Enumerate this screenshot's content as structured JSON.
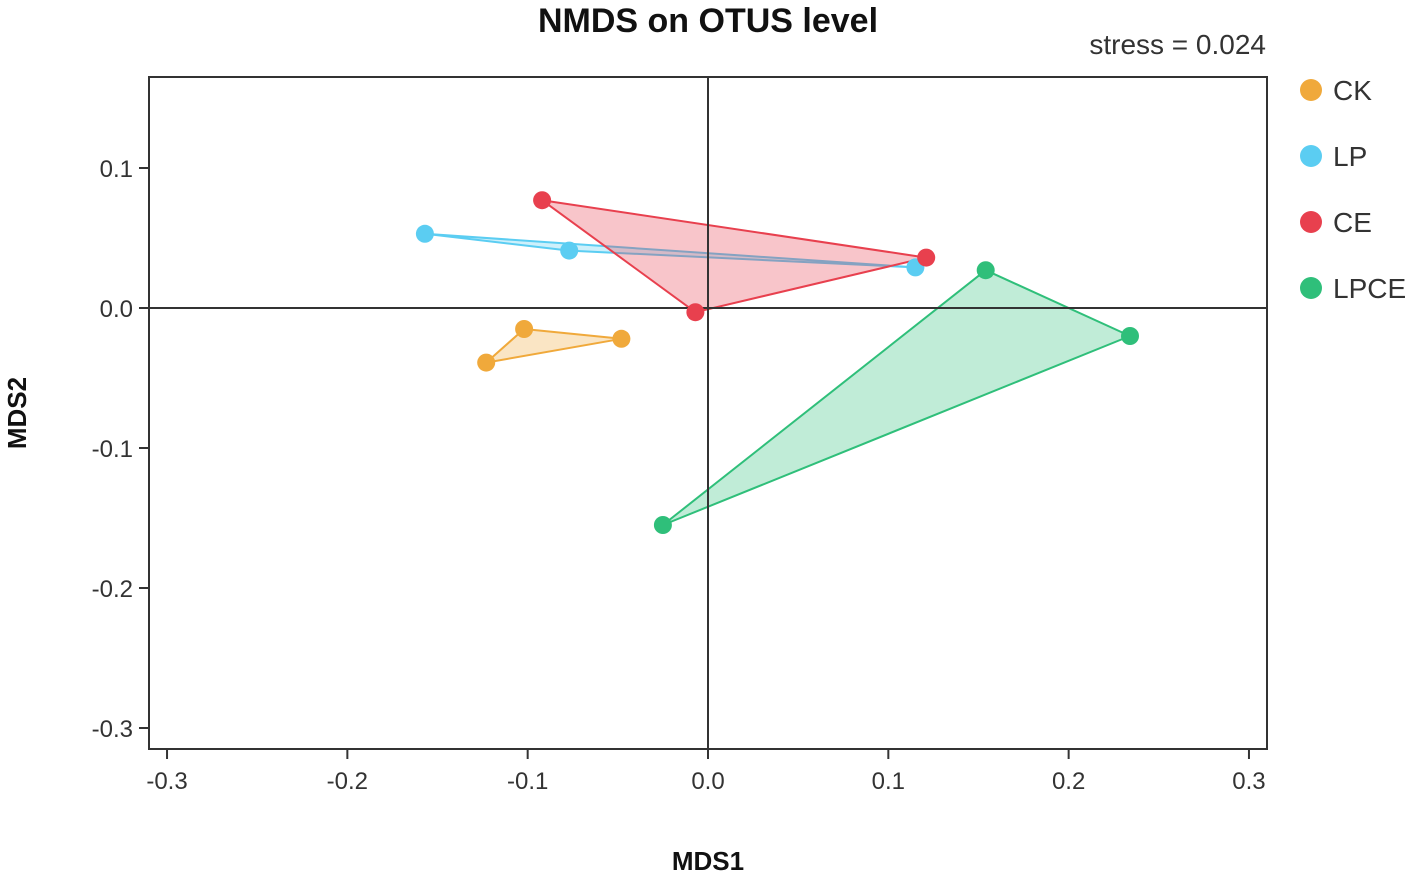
{
  "chart_data": {
    "type": "scatter",
    "title": "NMDS on OTUS level",
    "annotation": "stress = 0.024",
    "xlabel": "MDS1",
    "ylabel": "MDS2",
    "xlim": [
      -0.31,
      0.31
    ],
    "ylim": [
      -0.315,
      0.165
    ],
    "x_ticks": [
      -0.3,
      -0.2,
      -0.1,
      0.0,
      0.1,
      0.2,
      0.3
    ],
    "x_tick_labels": [
      "-0.3",
      "-0.2",
      "-0.1",
      "0.0",
      "0.1",
      "0.2",
      "0.3"
    ],
    "y_ticks": [
      0.1,
      0.0,
      -0.1,
      -0.2,
      -0.3
    ],
    "y_tick_labels": [
      "0.1",
      "0.0",
      "-0.1",
      "-0.2",
      "-0.3"
    ],
    "grid": false,
    "reference_lines": {
      "x": 0,
      "y": 0
    },
    "legend_position": "right",
    "series": [
      {
        "name": "CK",
        "color": "#f0a93b",
        "points": [
          [
            -0.102,
            -0.015
          ],
          [
            -0.048,
            -0.022
          ],
          [
            -0.123,
            -0.039
          ]
        ]
      },
      {
        "name": "LP",
        "color": "#5bcdf2",
        "points": [
          [
            -0.157,
            0.053
          ],
          [
            -0.077,
            0.041
          ],
          [
            0.115,
            0.029
          ]
        ]
      },
      {
        "name": "CE",
        "color": "#e8404e",
        "points": [
          [
            -0.092,
            0.077
          ],
          [
            0.121,
            0.036
          ],
          [
            -0.007,
            -0.003
          ]
        ]
      },
      {
        "name": "LPCE",
        "color": "#2fbf7a",
        "points": [
          [
            0.154,
            0.027
          ],
          [
            0.234,
            -0.02
          ],
          [
            -0.025,
            -0.155
          ]
        ]
      }
    ]
  }
}
